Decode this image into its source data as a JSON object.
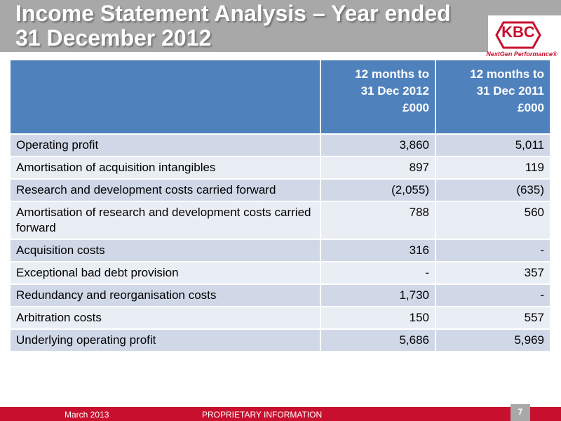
{
  "header": {
    "title": "Income Statement Analysis – Year ended 31 December 2012"
  },
  "logo": {
    "text": "KBC",
    "tagline": "NextGen Performance®",
    "color": "#c8102e"
  },
  "table": {
    "headers": [
      "",
      "12 months to\n31 Dec 2012\n£000",
      "12 months to\n31 Dec 2011\n£000"
    ],
    "header_color": "#4f81bd",
    "rows": [
      {
        "label": "Operating profit",
        "y2012": "3,860",
        "y2011": "5,011"
      },
      {
        "label": "Amortisation of acquisition intangibles",
        "y2012": "897",
        "y2011": "119"
      },
      {
        "label": "Research and development costs carried forward",
        "y2012": "(2,055)",
        "y2011": "(635)"
      },
      {
        "label": "Amortisation of research and development costs carried forward",
        "y2012": "788",
        "y2011": "560"
      },
      {
        "label": "Acquisition costs",
        "y2012": "316",
        "y2011": "-"
      },
      {
        "label": "Exceptional bad debt provision",
        "y2012": "-",
        "y2011": "357"
      },
      {
        "label": "Redundancy and reorganisation costs",
        "y2012": "1,730",
        "y2011": "-"
      },
      {
        "label": "Arbitration costs",
        "y2012": "150",
        "y2011": "557"
      },
      {
        "label": "Underlying operating profit",
        "y2012": "5,686",
        "y2011": "5,969"
      }
    ]
  },
  "footer": {
    "date": "March 2013",
    "classification": "PROPRIETARY INFORMATION",
    "page_number": "7",
    "bar_color": "#c8102e"
  }
}
